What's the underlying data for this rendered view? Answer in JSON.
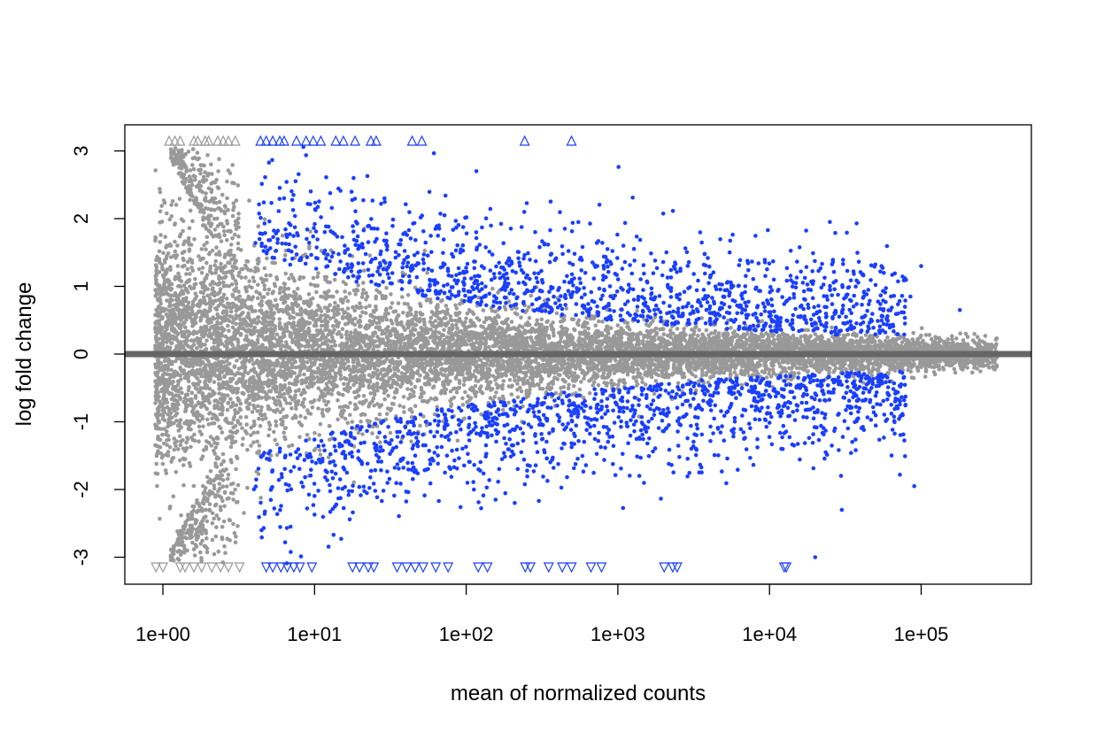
{
  "chart_data": {
    "type": "scatter",
    "title": "",
    "xlabel": "mean of normalized counts",
    "ylabel": "log fold change",
    "x_scale": "log10",
    "x_ticks": [
      1,
      10,
      100,
      1000,
      10000,
      100000
    ],
    "x_tick_labels": [
      "1e+00",
      "1e+01",
      "1e+02",
      "1e+03",
      "1e+04",
      "1e+05"
    ],
    "y_ticks": [
      -3,
      -2,
      -1,
      0,
      1,
      2,
      3
    ],
    "y_tick_labels": [
      "-3",
      "-2",
      "-1",
      "0",
      "1",
      "2",
      "3"
    ],
    "xlim": [
      0.55,
      550000
    ],
    "ylim": [
      -3.4,
      3.4
    ],
    "clip_value": 3.15,
    "grid": false,
    "reference_line": {
      "y": 0,
      "color": "#666666"
    },
    "colors": {
      "not_significant": "#999999",
      "significant": "#1a3fff"
    },
    "series": [
      {
        "significance": "not significant",
        "description": "gray points: genes not significantly differentially expressed",
        "points_sample": [
          [
            1.2,
            2.9
          ],
          [
            1.3,
            2.1
          ],
          [
            1.5,
            1.4
          ],
          [
            1.8,
            0.9
          ],
          [
            2.2,
            -1.1
          ],
          [
            3,
            0.6
          ],
          [
            5,
            -0.4
          ],
          [
            8,
            0.3
          ],
          [
            15,
            -0.2
          ],
          [
            30,
            0.25
          ],
          [
            100,
            0.1
          ],
          [
            500,
            -0.1
          ],
          [
            3000,
            0.05
          ],
          [
            20000,
            -0.08
          ],
          [
            100000,
            0.15
          ],
          [
            300000,
            0.02
          ]
        ],
        "clipped_up_x": [
          1.1,
          1.2,
          1.3,
          1.6,
          1.7,
          1.9,
          2.0,
          2.3,
          2.5,
          2.7,
          3.0
        ],
        "clipped_down_x": [
          0.9,
          1.0,
          1.3,
          1.4,
          1.6,
          1.8,
          2.1,
          2.4,
          2.7,
          3.2
        ]
      },
      {
        "significance": "significant",
        "description": "blue points: genes significantly differentially expressed",
        "points_sample": [
          [
            5,
            2.4
          ],
          [
            8,
            2.1
          ],
          [
            20,
            1.5
          ],
          [
            60,
            1.3
          ],
          [
            200,
            0.9
          ],
          [
            400,
            0.6
          ],
          [
            1000,
            0.55
          ],
          [
            3000,
            0.45
          ],
          [
            6000,
            1.95
          ],
          [
            100000,
            1.3
          ],
          [
            7,
            -2.2
          ],
          [
            40,
            -1.4
          ],
          [
            200,
            -1.2
          ],
          [
            1200,
            -0.7
          ],
          [
            5000,
            -0.5
          ],
          [
            90000,
            -1.95
          ],
          [
            20000,
            -3.0
          ]
        ],
        "clipped_up_x": [
          4.4,
          4.8,
          5.3,
          5.9,
          6.3,
          7.6,
          8.8,
          9.8,
          11.0,
          13.8,
          15.5,
          18.5,
          23.5,
          25.5,
          44.0,
          51.0,
          243.0,
          495.0
        ],
        "clipped_down_x": [
          4.8,
          5.3,
          6.0,
          6.6,
          7.3,
          8.0,
          9.6,
          17.8,
          19.8,
          22.6,
          24.6,
          35.0,
          40.5,
          46.0,
          52.0,
          63.0,
          76.0,
          120.0,
          138.0,
          245.0,
          265.0,
          350.0,
          430.0,
          495.0,
          665.0,
          780.0,
          2020.0,
          2300.0,
          2460.0,
          12500.0,
          12900.0
        ]
      }
    ]
  }
}
